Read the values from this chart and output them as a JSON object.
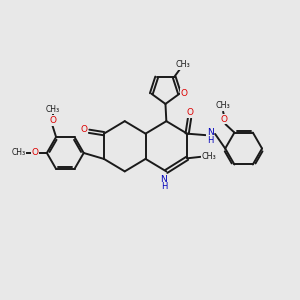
{
  "background_color": "#e8e8e8",
  "bond_color": "#1a1a1a",
  "heteroatom_color_O": "#dd0000",
  "heteroatom_color_N": "#0000bb",
  "line_width": 1.4,
  "figsize": [
    3.0,
    3.0
  ],
  "dpi": 100,
  "xlim": [
    0,
    10
  ],
  "ylim": [
    0,
    10
  ]
}
